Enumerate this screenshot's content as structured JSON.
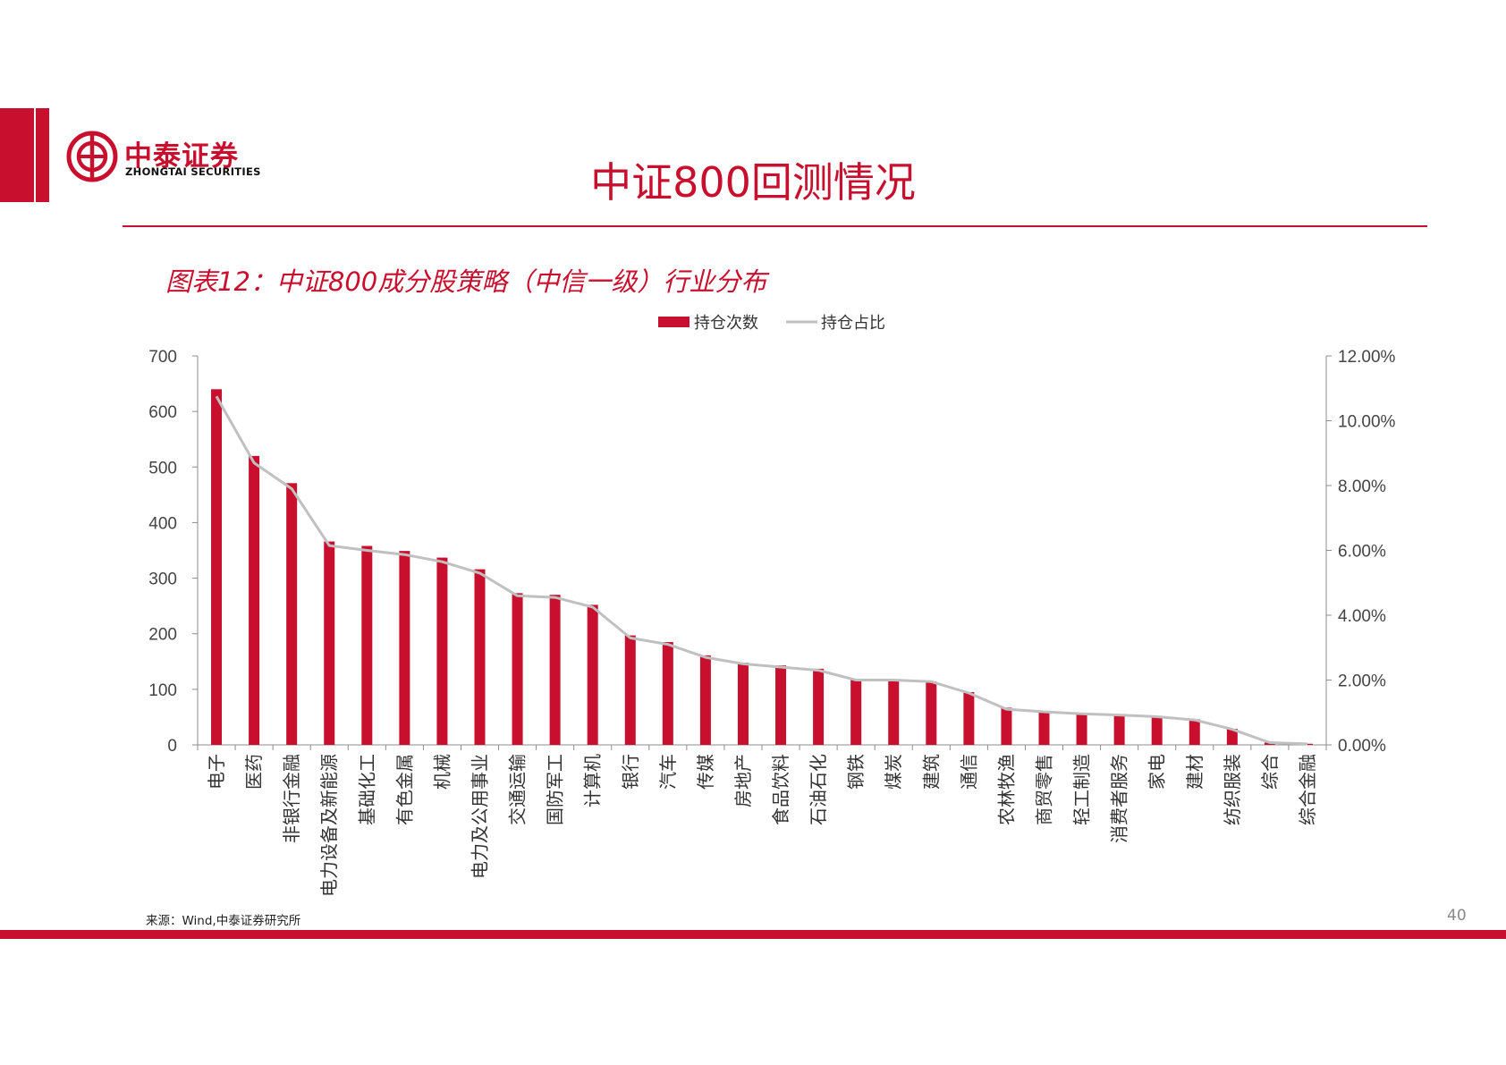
{
  "header": {
    "logo_cn": "中泰证券",
    "logo_en": "ZHONGTAI SECURITIES",
    "title": "中证800回测情况"
  },
  "figure": {
    "title": "图表12：中证800成分股策略（中信一级）行业分布"
  },
  "footer": {
    "source": "来源：Wind,中泰证券研究所",
    "page_number": "40"
  },
  "colors": {
    "brand_red": "#c8102e",
    "line_gray": "#c0c0c0"
  },
  "chart_data": {
    "type": "bar",
    "categories": [
      "电子",
      "医药",
      "非银行金融",
      "电力设备及新能源",
      "基础化工",
      "有色金属",
      "机械",
      "电力及公用事业",
      "交通运输",
      "国防军工",
      "计算机",
      "银行",
      "汽车",
      "传媒",
      "房地产",
      "食品饮料",
      "石油石化",
      "钢铁",
      "煤炭",
      "建筑",
      "通信",
      "农林牧渔",
      "商贸零售",
      "轻工制造",
      "消费者服务",
      "家电",
      "建材",
      "纺织服装",
      "综合",
      "综合金融"
    ],
    "series": [
      {
        "name": "持仓次数",
        "type": "bar",
        "axis": "left",
        "color": "#c8102e",
        "values": [
          640,
          520,
          471,
          366,
          358,
          349,
          337,
          316,
          273,
          270,
          252,
          197,
          185,
          161,
          148,
          143,
          137,
          118,
          117,
          114,
          95,
          67,
          61,
          57,
          55,
          52,
          46,
          29,
          4,
          2
        ]
      },
      {
        "name": "持仓占比",
        "type": "line",
        "axis": "right",
        "color": "#c0c0c0",
        "values": [
          10.75,
          8.7,
          7.9,
          6.15,
          6.0,
          5.87,
          5.65,
          5.3,
          4.6,
          4.55,
          4.25,
          3.3,
          3.1,
          2.7,
          2.5,
          2.4,
          2.3,
          2.0,
          2.0,
          1.95,
          1.6,
          1.1,
          1.02,
          0.96,
          0.92,
          0.87,
          0.77,
          0.48,
          0.07,
          0.03
        ]
      }
    ],
    "y_left": {
      "min": 0,
      "max": 700,
      "ticks": [
        "0",
        "100",
        "200",
        "300",
        "400",
        "500",
        "600",
        "700"
      ]
    },
    "y_right": {
      "min": 0,
      "max": 12,
      "ticks": [
        "0.00%",
        "2.00%",
        "4.00%",
        "6.00%",
        "8.00%",
        "10.00%",
        "12.00%"
      ]
    },
    "grid": false,
    "legend_position": "top-center"
  }
}
